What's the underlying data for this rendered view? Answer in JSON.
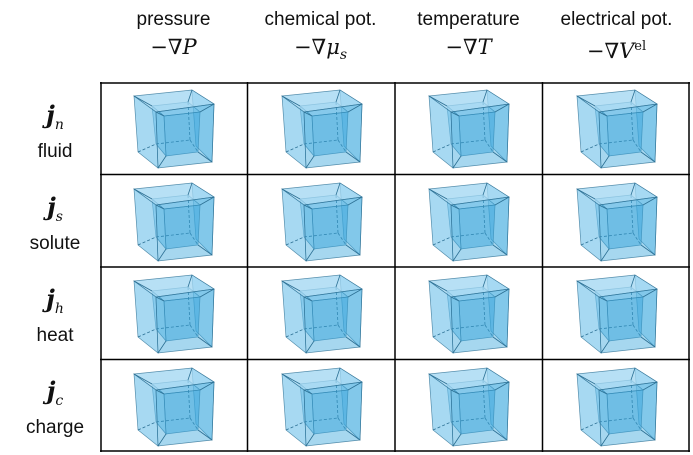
{
  "columns": [
    {
      "name": "pressure",
      "gradient": "−∇P"
    },
    {
      "name": "chemical pot.",
      "gradient": "−∇μs"
    },
    {
      "name": "temperature",
      "gradient": "−∇T"
    },
    {
      "name": "electrical pot.",
      "gradient": "−∇Vel"
    }
  ],
  "rows": [
    {
      "flux": "j",
      "sub": "n",
      "name": "fluid"
    },
    {
      "flux": "j",
      "sub": "s",
      "name": "solute"
    },
    {
      "flux": "j",
      "sub": "h",
      "name": "heat"
    },
    {
      "flux": "j",
      "sub": "c",
      "name": "charge"
    }
  ],
  "colors": {
    "cube_face_light": "#9fd6f2",
    "cube_face_mid": "#6cc0ea",
    "cube_face_dark": "#3aa6dc",
    "cube_edge": "#2b6f93",
    "grid_line": "#000000"
  },
  "icons": {
    "cell_icon": "transparent-cube-icon"
  }
}
